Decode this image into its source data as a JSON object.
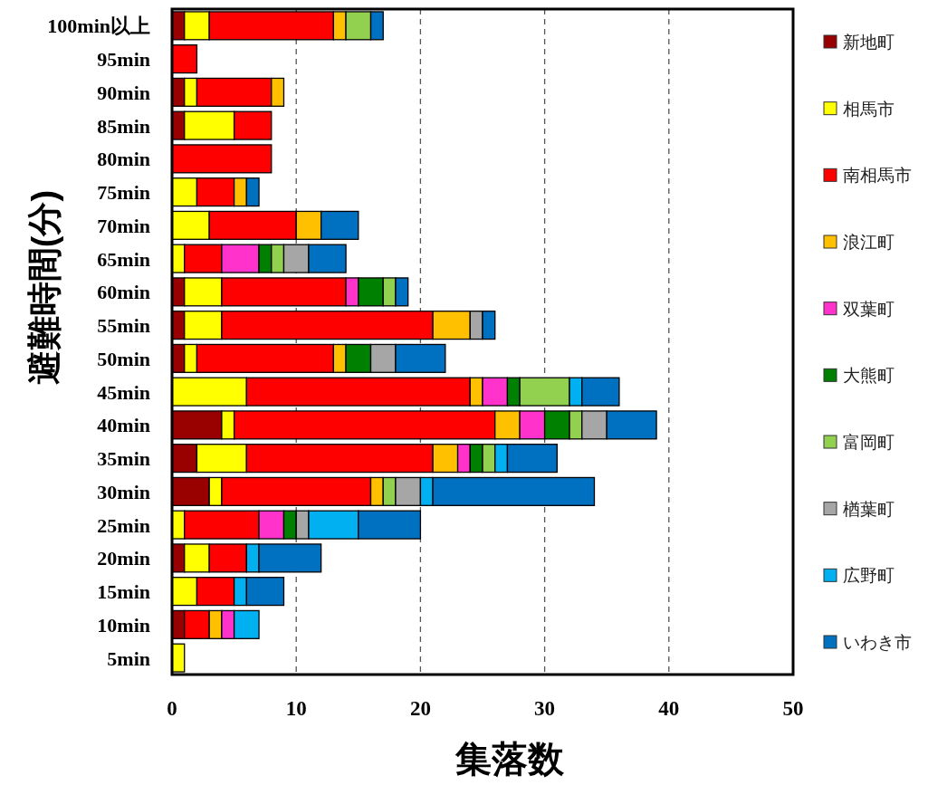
{
  "chart_data": {
    "type": "bar",
    "orientation": "horizontal",
    "stacked": true,
    "xlabel": "集落数",
    "ylabel": "避難時間(分)",
    "categories": [
      "100min以上",
      "95min",
      "90min",
      "85min",
      "80min",
      "75min",
      "70min",
      "65min",
      "60min",
      "55min",
      "50min",
      "45min",
      "40min",
      "35min",
      "30min",
      "25min",
      "20min",
      "15min",
      "10min",
      "5min"
    ],
    "series": [
      {
        "name": "新地町",
        "color": "#990000",
        "values": [
          1,
          0,
          1,
          1,
          0,
          0,
          0,
          0,
          1,
          1,
          1,
          0,
          4,
          2,
          3,
          0,
          1,
          0,
          1,
          0
        ]
      },
      {
        "name": "相馬市",
        "color": "#ffff00",
        "values": [
          2,
          0,
          1,
          4,
          0,
          2,
          3,
          1,
          3,
          3,
          1,
          6,
          1,
          4,
          1,
          1,
          2,
          2,
          0,
          1
        ]
      },
      {
        "name": "南相馬市",
        "color": "#ff0000",
        "values": [
          10,
          2,
          6,
          3,
          8,
          3,
          7,
          3,
          10,
          17,
          11,
          18,
          21,
          15,
          12,
          6,
          3,
          3,
          2,
          0
        ]
      },
      {
        "name": "浪江町",
        "color": "#ffc000",
        "values": [
          1,
          0,
          1,
          0,
          0,
          1,
          2,
          0,
          0,
          3,
          1,
          1,
          2,
          2,
          1,
          0,
          0,
          0,
          1,
          0
        ]
      },
      {
        "name": "双葉町",
        "color": "#ff33cc",
        "values": [
          0,
          0,
          0,
          0,
          0,
          0,
          0,
          3,
          1,
          0,
          0,
          2,
          2,
          1,
          0,
          2,
          0,
          0,
          1,
          0
        ]
      },
      {
        "name": "大熊町",
        "color": "#008000",
        "values": [
          0,
          0,
          0,
          0,
          0,
          0,
          0,
          1,
          2,
          0,
          2,
          1,
          2,
          1,
          0,
          1,
          0,
          0,
          0,
          0
        ]
      },
      {
        "name": "富岡町",
        "color": "#92d050",
        "values": [
          2,
          0,
          0,
          0,
          0,
          0,
          0,
          1,
          1,
          0,
          0,
          4,
          1,
          1,
          1,
          0,
          0,
          0,
          0,
          0
        ]
      },
      {
        "name": "楢葉町",
        "color": "#a6a6a6",
        "values": [
          0,
          0,
          0,
          0,
          0,
          0,
          0,
          2,
          0,
          1,
          2,
          0,
          2,
          0,
          2,
          1,
          0,
          0,
          0,
          0
        ]
      },
      {
        "name": "広野町",
        "color": "#00b0f0",
        "values": [
          0,
          0,
          0,
          0,
          0,
          0,
          0,
          0,
          0,
          0,
          0,
          1,
          0,
          1,
          1,
          4,
          1,
          1,
          2,
          0
        ]
      },
      {
        "name": "いわき市",
        "color": "#0070c0",
        "values": [
          1,
          0,
          0,
          0,
          0,
          1,
          3,
          3,
          1,
          1,
          4,
          3,
          4,
          4,
          13,
          5,
          5,
          3,
          0,
          0
        ]
      }
    ],
    "xlim": [
      0,
      50
    ],
    "xticks": [
      0,
      10,
      20,
      30,
      40,
      50
    ],
    "grid": "x",
    "legend": "right"
  }
}
